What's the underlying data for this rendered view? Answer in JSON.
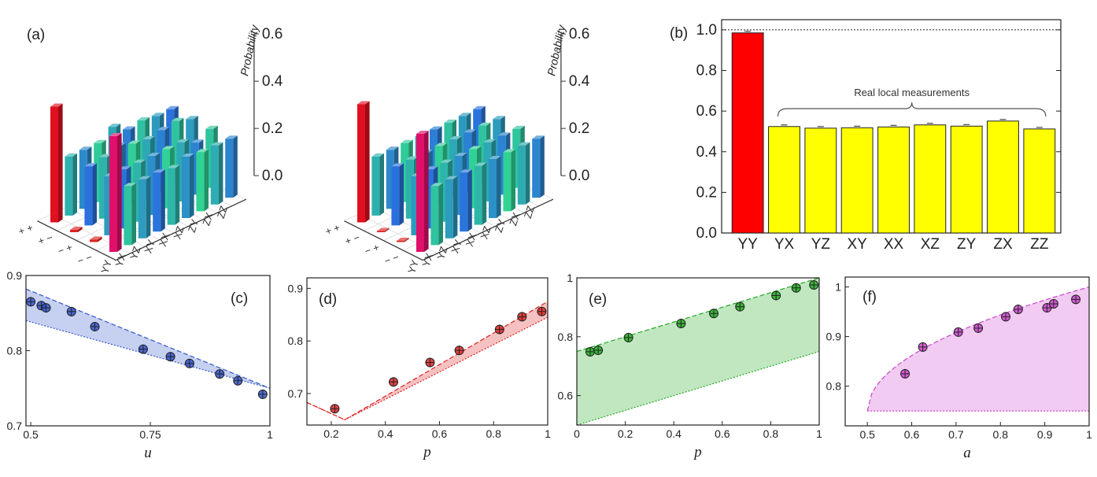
{
  "chart_data": [
    {
      "panel": "(a)",
      "type": "bar3d",
      "zlabel": "Probability",
      "zticks": [
        "0.0",
        "0.2",
        "0.4",
        "0.6"
      ],
      "zlim": [
        0,
        0.6
      ],
      "row_labels": [
        "+ +",
        "+ −",
        "− +",
        "− −"
      ],
      "col_labels": [
        "YY",
        "YX",
        "YZ",
        "XY",
        "XX",
        "XZ",
        "ZY",
        "ZX",
        "ZZ"
      ],
      "values": [
        [
          0.49,
          0.25,
          0.25,
          0.25,
          0.29,
          0.25,
          0.26,
          0.25,
          0.25
        ],
        [
          0.01,
          0.25,
          0.26,
          0.28,
          0.26,
          0.25,
          0.26,
          0.27,
          0.25
        ],
        [
          0.01,
          0.25,
          0.25,
          0.25,
          0.25,
          0.25,
          0.25,
          0.22,
          0.25
        ],
        [
          0.49,
          0.25,
          0.25,
          0.25,
          0.24,
          0.26,
          0.25,
          0.25,
          0.25
        ]
      ]
    },
    {
      "panel": "",
      "type": "bar3d",
      "zlabel": "Probability",
      "zticks": [
        "0.0",
        "0.2",
        "0.4",
        "0.6"
      ],
      "zlim": [
        0,
        0.6
      ],
      "row_labels": [
        "+ +",
        "+ −",
        "− +",
        "− −"
      ],
      "col_labels": [
        "YY",
        "YX",
        "YZ",
        "XY",
        "XX",
        "XZ",
        "ZY",
        "ZX",
        "ZZ"
      ],
      "values": [
        [
          0.5,
          0.25,
          0.25,
          0.25,
          0.25,
          0.25,
          0.25,
          0.25,
          0.25
        ],
        [
          0.0,
          0.25,
          0.25,
          0.25,
          0.25,
          0.25,
          0.25,
          0.25,
          0.25
        ],
        [
          0.0,
          0.25,
          0.25,
          0.25,
          0.25,
          0.25,
          0.25,
          0.25,
          0.25
        ],
        [
          0.5,
          0.25,
          0.25,
          0.25,
          0.25,
          0.25,
          0.25,
          0.25,
          0.25
        ]
      ]
    },
    {
      "panel": "(b)",
      "type": "bar",
      "categories": [
        "YY",
        "YX",
        "YZ",
        "XY",
        "XX",
        "XZ",
        "ZY",
        "ZX",
        "ZZ"
      ],
      "values": [
        0.985,
        0.524,
        0.516,
        0.518,
        0.522,
        0.532,
        0.526,
        0.551,
        0.512
      ],
      "colors": [
        "#ff0000",
        "#ffff00",
        "#ffff00",
        "#ffff00",
        "#ffff00",
        "#ffff00",
        "#ffff00",
        "#ffff00",
        "#ffff00"
      ],
      "ylim": [
        0,
        1.05
      ],
      "yticks": [
        "0.0",
        "0.2",
        "0.4",
        "0.6",
        "0.8",
        "1.0"
      ],
      "reference_line": 1.0,
      "annotation": "Real local measurements"
    },
    {
      "panel": "(c)",
      "type": "scatter",
      "xlabel": "u",
      "xlim": [
        0.49,
        1.0
      ],
      "ylim": [
        0.7,
        0.9
      ],
      "xticks": [
        "0.5",
        "0.75",
        "1"
      ],
      "yticks": [
        "0.7",
        "0.8",
        "0.9"
      ],
      "x": [
        0.5,
        0.522,
        0.532,
        0.585,
        0.634,
        0.735,
        0.792,
        0.832,
        0.895,
        0.933,
        0.985
      ],
      "y": [
        0.865,
        0.86,
        0.857,
        0.852,
        0.832,
        0.802,
        0.792,
        0.783,
        0.769,
        0.76,
        0.742
      ],
      "band_upper": [
        [
          0.49,
          0.882
        ],
        [
          1.0,
          0.75
        ]
      ],
      "band_lower": [
        [
          0.49,
          0.84
        ],
        [
          1.0,
          0.75
        ]
      ],
      "color": "#3355cc"
    },
    {
      "panel": "(d)",
      "type": "scatter",
      "xlabel": "p",
      "xlim": [
        0.11,
        1.0
      ],
      "ylim": [
        0.64,
        0.92
      ],
      "xticks": [
        "0.2",
        "0.4",
        "0.6",
        "0.8",
        "1"
      ],
      "yticks": [
        "0.7",
        "0.8",
        "0.9"
      ],
      "x": [
        0.213,
        0.43,
        0.565,
        0.673,
        0.822,
        0.905,
        0.978
      ],
      "y": [
        0.671,
        0.722,
        0.759,
        0.782,
        0.822,
        0.846,
        0.856
      ],
      "band_upper": [
        [
          0.11,
          0.683
        ],
        [
          0.25,
          0.65
        ],
        [
          1.0,
          0.875
        ]
      ],
      "band_lower": [
        [
          0.11,
          0.683
        ],
        [
          0.25,
          0.65
        ],
        [
          1.0,
          0.845
        ]
      ],
      "color": "#dd2222"
    },
    {
      "panel": "(e)",
      "type": "scatter",
      "xlabel": "p",
      "xlim": [
        0,
        1.0
      ],
      "ylim": [
        0.5,
        1.0
      ],
      "xticks": [
        "0",
        "0.2",
        "0.4",
        "0.6",
        "0.8",
        "1"
      ],
      "yticks": [
        "0.6",
        "0.8",
        "1"
      ],
      "x": [
        0.055,
        0.088,
        0.213,
        0.43,
        0.565,
        0.673,
        0.822,
        0.905,
        0.978
      ],
      "y": [
        0.749,
        0.754,
        0.797,
        0.845,
        0.879,
        0.902,
        0.94,
        0.966,
        0.976
      ],
      "band_upper": [
        [
          0,
          0.75
        ],
        [
          1.0,
          1.0
        ]
      ],
      "band_lower": [
        [
          0,
          0.5
        ],
        [
          1.0,
          0.75
        ]
      ],
      "color": "#22aa22"
    },
    {
      "panel": "(f)",
      "type": "scatter",
      "xlabel": "a",
      "xlim": [
        0.45,
        1.0
      ],
      "ylim": [
        0.72,
        1.02
      ],
      "xticks": [
        "0.5",
        "0.6",
        "0.7",
        "0.8",
        "0.9",
        "1"
      ],
      "yticks": [
        "0.8",
        "0.9",
        "1"
      ],
      "x": [
        0.585,
        0.625,
        0.705,
        0.75,
        0.812,
        0.84,
        0.905,
        0.92,
        0.97
      ],
      "y": [
        0.825,
        0.879,
        0.909,
        0.917,
        0.94,
        0.955,
        0.958,
        0.966,
        0.975
      ],
      "band_upper": "sqrt(1/2 + ...) curve from (0.5, 0.75) to (1.0, 1.0)",
      "band_lower": [
        [
          0.5,
          0.75
        ],
        [
          1.0,
          0.75
        ]
      ],
      "color": "#cc44cc"
    }
  ]
}
